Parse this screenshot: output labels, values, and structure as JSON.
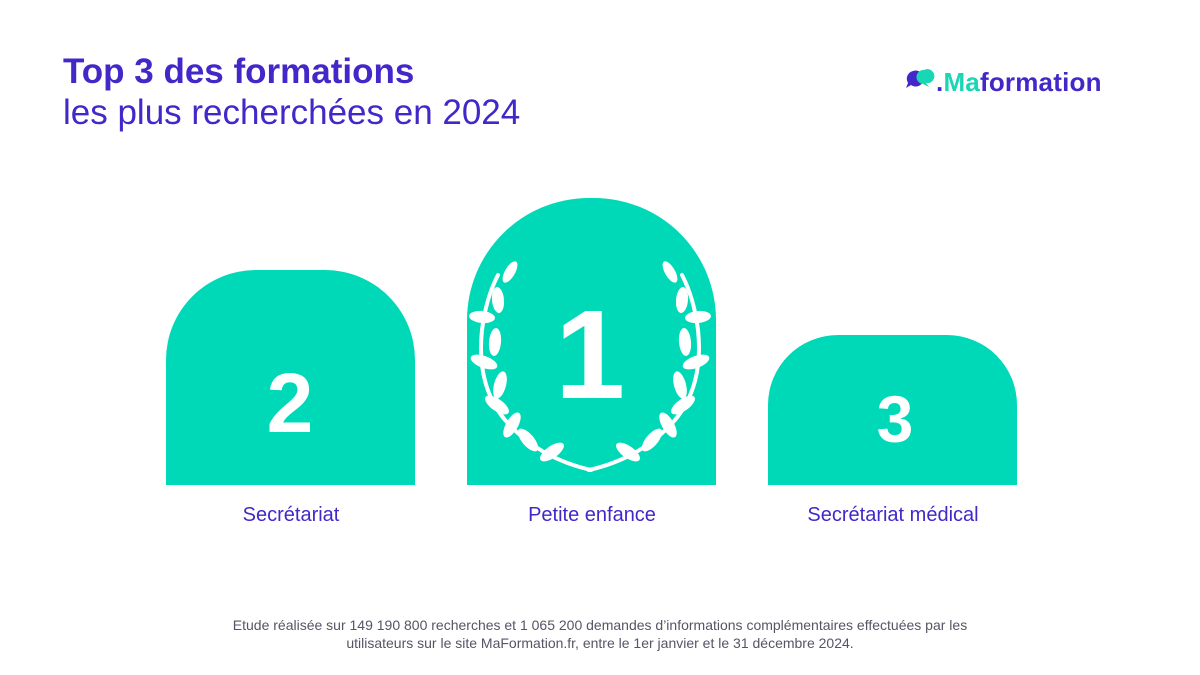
{
  "header": {
    "title": "Top 3 des formations",
    "subtitle": "les plus recherchées en 2024"
  },
  "logo": {
    "prefix": ".",
    "brand_accent": "Ma",
    "brand_rest": "formation",
    "icon": "speech-bubbles-icon"
  },
  "podium": [
    {
      "rank": "2",
      "label": "Secrétariat"
    },
    {
      "rank": "1",
      "label": "Petite enfance"
    },
    {
      "rank": "3",
      "label": "Secrétariat médical"
    }
  ],
  "footnote": {
    "line1": "Etude réalisée sur 149 190 800 recherches et 1 065 200 demandes d’informations complémentaires effectuées par les",
    "line2": "utilisateurs sur le site MaFormation.fr, entre le 1er janvier et le 31 décembre 2024."
  },
  "colors": {
    "primary": "#4327c9",
    "accent": "#00d9b8",
    "text_muted": "#555566"
  }
}
